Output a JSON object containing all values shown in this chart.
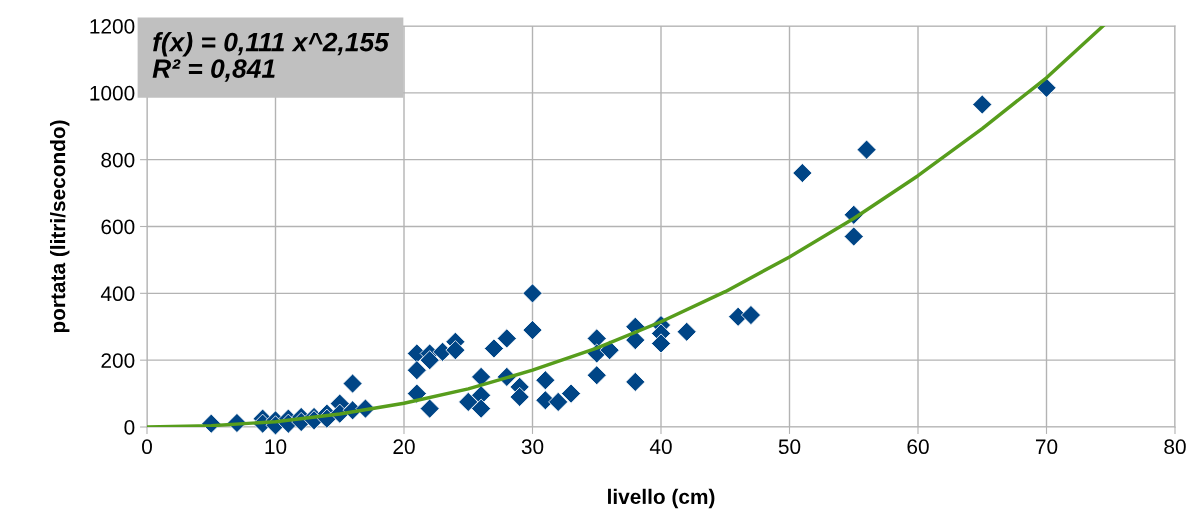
{
  "chart_data": {
    "type": "scatter",
    "xlabel": "livello (cm)",
    "ylabel": "portata (litri/secondo)",
    "annotations": [
      "f(x) = 0,111 x^2,155\nR² = 0,841"
    ],
    "series": [
      {
        "color": "#004586",
        "marker": "diamond",
        "x": [
          5,
          7,
          9,
          9,
          10,
          10,
          11,
          11,
          12,
          12,
          13,
          13,
          14,
          14,
          15,
          15,
          16,
          16,
          17,
          21,
          21,
          21,
          22,
          22,
          22,
          23,
          24,
          24,
          25,
          26,
          26,
          26,
          27,
          28,
          28,
          29,
          29,
          30,
          30,
          31,
          31,
          32,
          33,
          35,
          35,
          35,
          36,
          38,
          38,
          38,
          40,
          40,
          40,
          42,
          46,
          47,
          51,
          55,
          55,
          56,
          65,
          70
        ],
        "values": [
          10,
          12,
          25,
          10,
          20,
          5,
          25,
          10,
          30,
          15,
          30,
          20,
          40,
          25,
          70,
          40,
          130,
          50,
          55,
          220,
          170,
          100,
          220,
          200,
          55,
          225,
          255,
          230,
          75,
          150,
          95,
          55,
          235,
          265,
          150,
          120,
          90,
          400,
          290,
          140,
          80,
          75,
          100,
          265,
          220,
          155,
          230,
          300,
          260,
          135,
          305,
          280,
          250,
          285,
          330,
          335,
          760,
          635,
          570,
          830,
          965,
          1015
        ]
      },
      {
        "type": "line",
        "color": "#579d1c",
        "marker": "none",
        "line_style": "solid",
        "x": [
          0,
          5,
          10,
          15,
          20,
          25,
          30,
          35,
          40,
          45,
          50,
          55,
          60,
          65,
          70,
          74.4
        ],
        "values": [
          0,
          4,
          16,
          39,
          71,
          114,
          170,
          236,
          315,
          405,
          509,
          624,
          752,
          893,
          1045,
          1200
        ]
      }
    ],
    "xlim": [
      0,
      80
    ],
    "xticks": [
      0,
      10,
      20,
      30,
      40,
      50,
      60,
      70,
      80
    ],
    "ylim": [
      0,
      1200
    ],
    "yticks": [
      0,
      200,
      400,
      600,
      800,
      1000,
      1200
    ],
    "grid": true,
    "legend": false
  }
}
